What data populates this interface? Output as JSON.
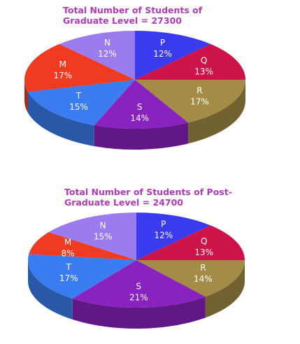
{
  "chart_data": [
    {
      "type": "pie",
      "title": "Total Number of Students of Graduate Level = 27300",
      "categories": [
        "P",
        "Q",
        "R",
        "S",
        "T",
        "M",
        "N"
      ],
      "values": [
        12,
        13,
        17,
        14,
        15,
        17,
        12
      ],
      "value_labels": [
        "12%",
        "13%",
        "17%",
        "14%",
        "15%",
        "17%",
        "12%"
      ],
      "colors": [
        "#3a3aee",
        "#cc1448",
        "#a38c45",
        "#8a22c0",
        "#3b7df0",
        "#f03a22",
        "#9a7cee"
      ]
    },
    {
      "type": "pie",
      "title": "Total Number of Students of Post-Graduate Level = 24700",
      "categories": [
        "P",
        "Q",
        "R",
        "S",
        "T",
        "M",
        "N"
      ],
      "values": [
        12,
        13,
        14,
        21,
        17,
        8,
        15
      ],
      "value_labels": [
        "12%",
        "13%",
        "14%",
        "21%",
        "17%",
        "8%",
        "15%"
      ],
      "colors": [
        "#3a3aee",
        "#cc1448",
        "#a38c45",
        "#8a22c0",
        "#3b7df0",
        "#f03a22",
        "#9a7cee"
      ]
    }
  ]
}
